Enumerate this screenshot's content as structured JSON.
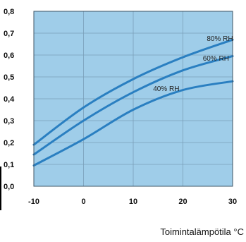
{
  "chart_data": {
    "type": "line",
    "title": "",
    "xlabel": "Toimintalämpötila °C",
    "ylabel": "",
    "x": [
      -10,
      0,
      10,
      20,
      30
    ],
    "xlim": [
      -10,
      30
    ],
    "ylim": [
      0,
      0.8
    ],
    "x_ticks": [
      "-10",
      "0",
      "10",
      "20",
      "30"
    ],
    "y_ticks": [
      "0,0",
      "0,1",
      "0,2",
      "0,3",
      "0,4",
      "0,5",
      "0,6",
      "0,7",
      "0,8"
    ],
    "grid": true,
    "legend": "none",
    "series": [
      {
        "name": "80% RH",
        "values": [
          0.19,
          0.36,
          0.49,
          0.59,
          0.67
        ]
      },
      {
        "name": "60% RH",
        "values": [
          0.145,
          0.3,
          0.43,
          0.53,
          0.595
        ]
      },
      {
        "name": "40% RH",
        "values": [
          0.095,
          0.215,
          0.35,
          0.44,
          0.48
        ]
      }
    ],
    "annotations": [
      "80% RH",
      "60% RH",
      "40% RH"
    ],
    "colors": {
      "plot_background": "#9fcde9",
      "line": "#2a7fc1",
      "grid": "#7a9fb8",
      "frame": "#3d5566"
    }
  }
}
